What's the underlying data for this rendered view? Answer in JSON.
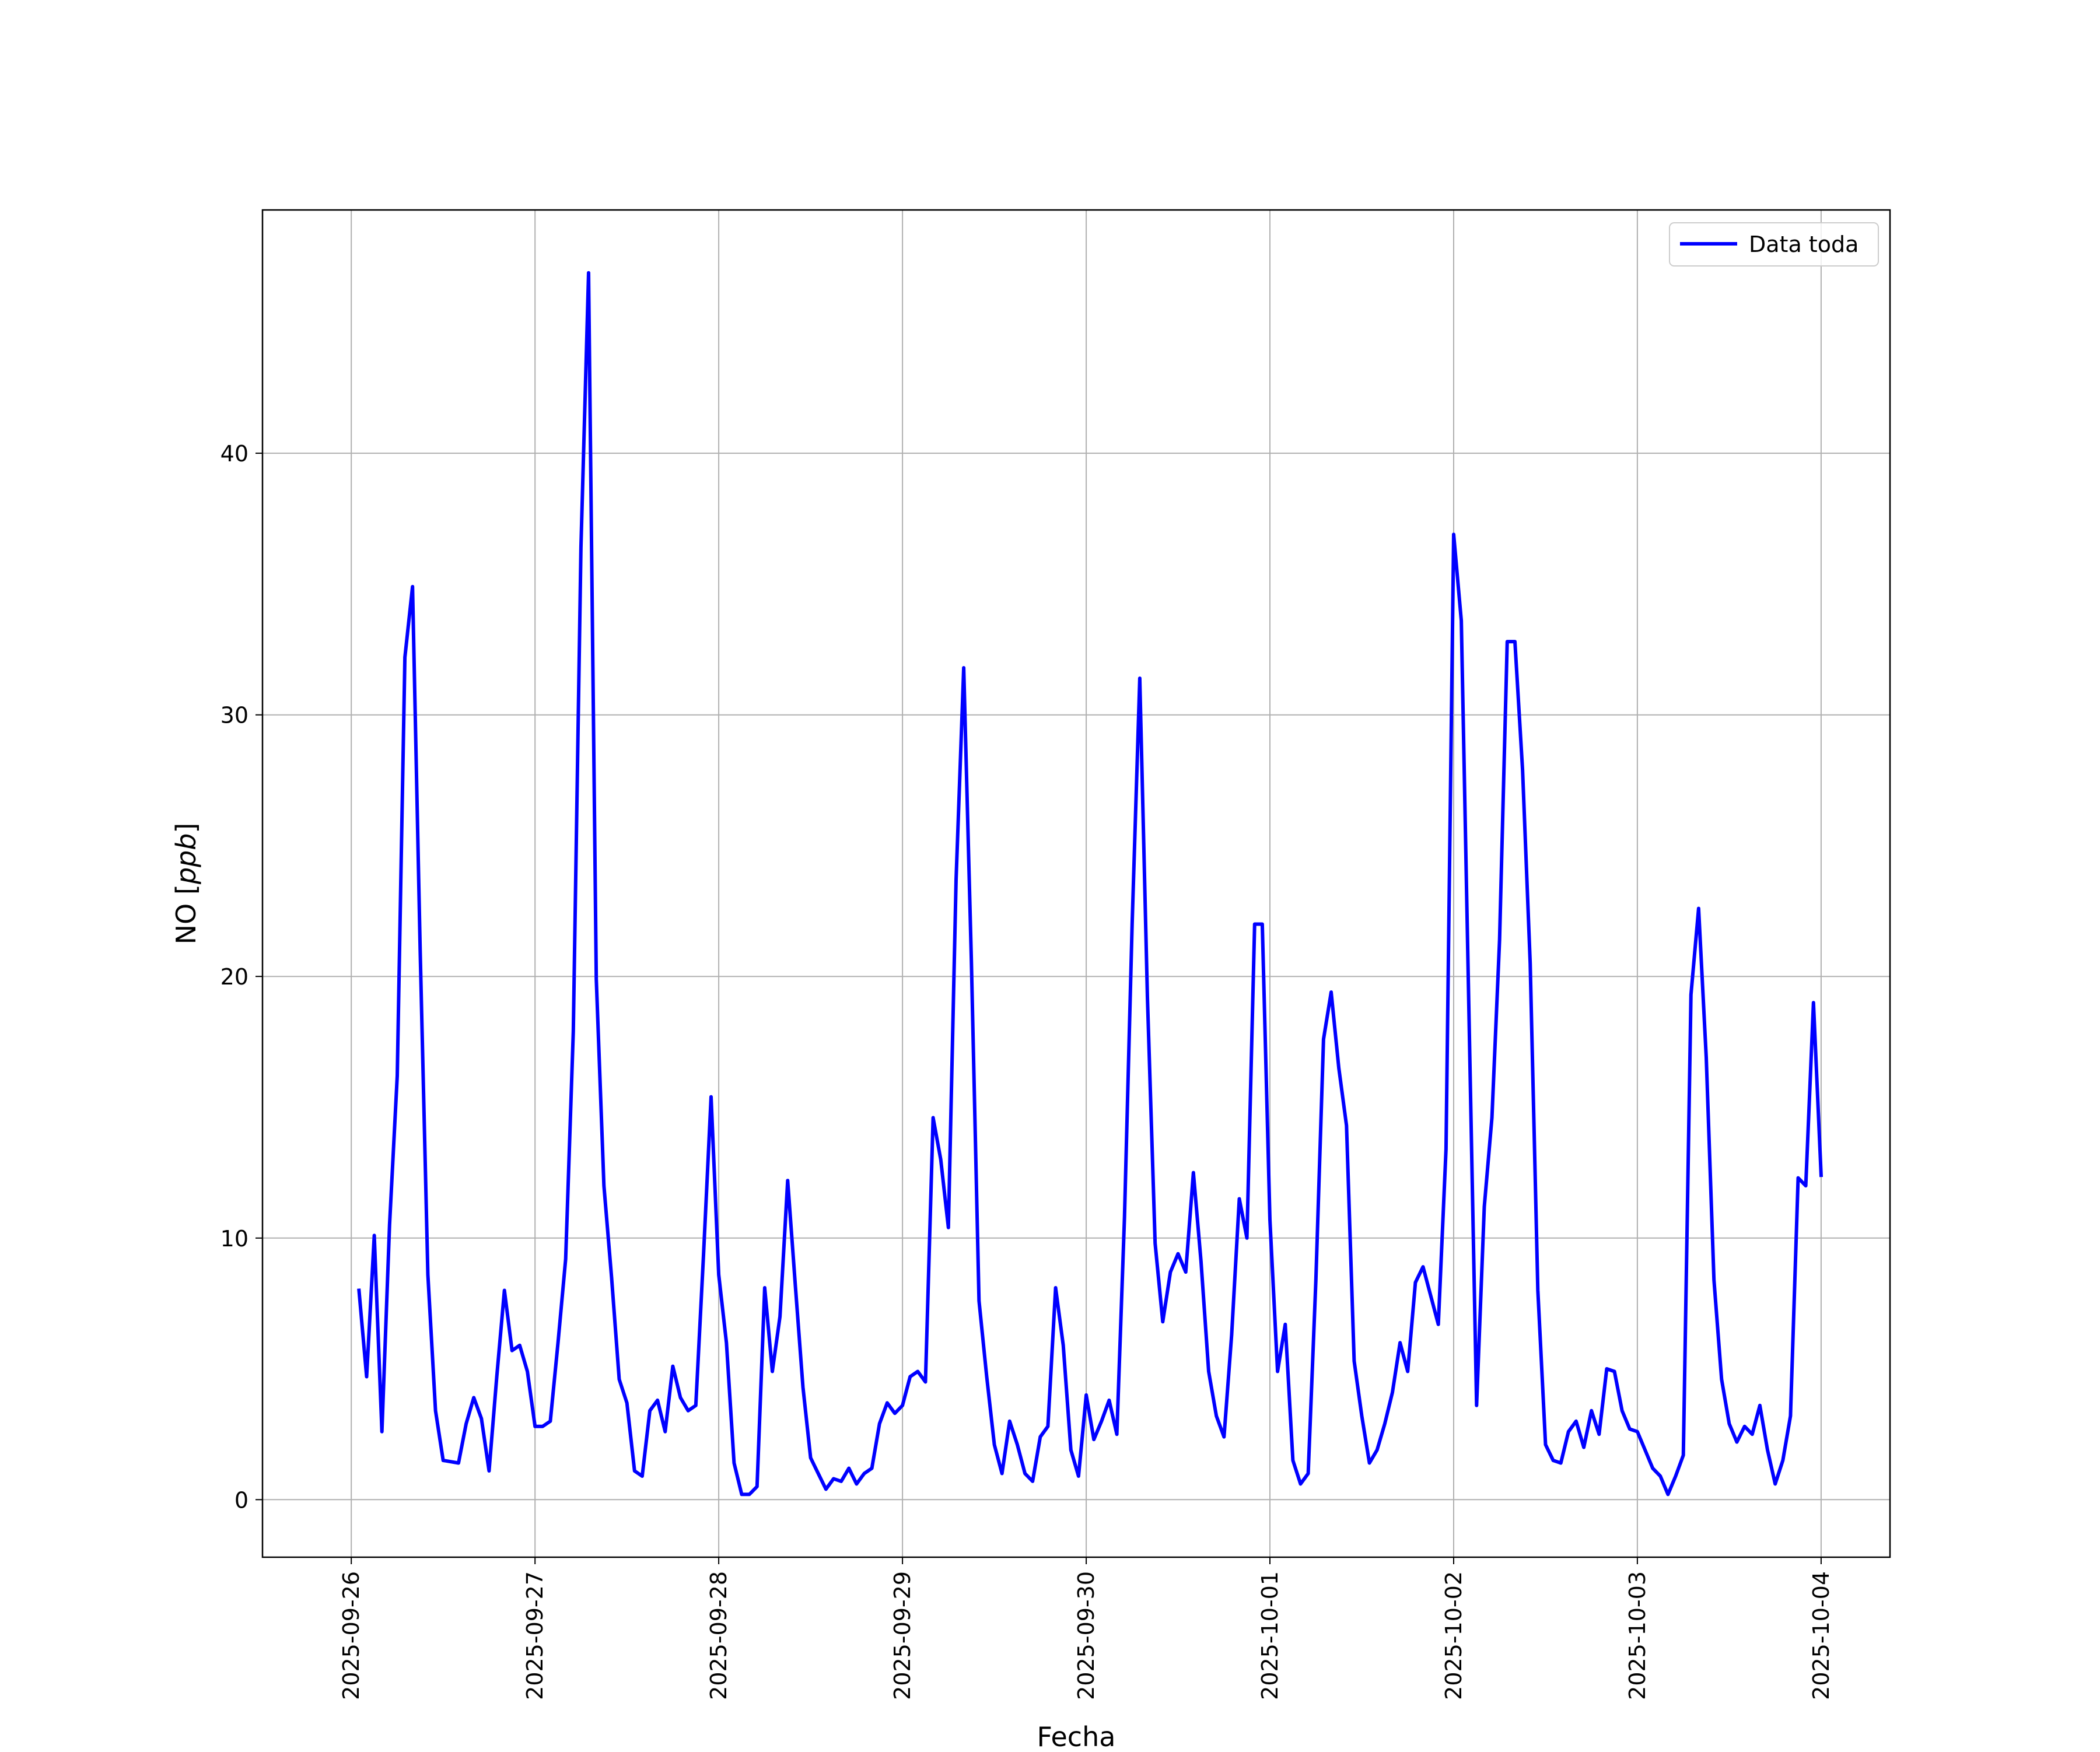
{
  "chart_data": {
    "type": "line",
    "title": "",
    "xlabel": "Fecha",
    "ylabel_main": "NO ",
    "ylabel_unit": "ppb",
    "xlim": [
      "2025-09-25T12:24",
      "2025-10-04T09:00"
    ],
    "ylim": [
      -2.2,
      49.3
    ],
    "grid": true,
    "x_ticks": [
      "2025-09-26",
      "2025-09-27",
      "2025-09-28",
      "2025-09-29",
      "2025-09-30",
      "2025-10-01",
      "2025-10-02",
      "2025-10-03",
      "2025-10-04"
    ],
    "y_ticks": [
      0,
      10,
      20,
      30,
      40
    ],
    "legend": {
      "position": "top-right",
      "entries": [
        "Data toda"
      ]
    },
    "series": [
      {
        "name": "Data toda",
        "color": "#0000ff",
        "x": [
          "2025-09-26T01:00",
          "2025-09-26T02:00",
          "2025-09-26T03:00",
          "2025-09-26T04:00",
          "2025-09-26T05:00",
          "2025-09-26T06:00",
          "2025-09-26T07:00",
          "2025-09-26T08:00",
          "2025-09-26T09:00",
          "2025-09-26T10:00",
          "2025-09-26T11:00",
          "2025-09-26T12:00",
          "2025-09-26T14:00",
          "2025-09-26T15:00",
          "2025-09-26T16:00",
          "2025-09-26T17:00",
          "2025-09-26T18:00",
          "2025-09-26T19:00",
          "2025-09-26T20:00",
          "2025-09-26T21:00",
          "2025-09-26T22:00",
          "2025-09-26T23:00",
          "2025-09-27T00:00",
          "2025-09-27T01:00",
          "2025-09-27T02:00",
          "2025-09-27T03:00",
          "2025-09-27T04:00",
          "2025-09-27T05:00",
          "2025-09-27T06:00",
          "2025-09-27T07:00",
          "2025-09-27T08:00",
          "2025-09-27T09:00",
          "2025-09-27T10:00",
          "2025-09-27T11:00",
          "2025-09-27T12:00",
          "2025-09-27T13:00",
          "2025-09-27T14:00",
          "2025-09-27T15:00",
          "2025-09-27T16:00",
          "2025-09-27T17:00",
          "2025-09-27T18:00",
          "2025-09-27T19:00",
          "2025-09-27T20:00",
          "2025-09-27T21:00",
          "2025-09-27T22:00",
          "2025-09-27T23:00",
          "2025-09-28T00:00",
          "2025-09-28T01:00",
          "2025-09-28T02:00",
          "2025-09-28T03:00",
          "2025-09-28T04:00",
          "2025-09-28T05:00",
          "2025-09-28T06:00",
          "2025-09-28T07:00",
          "2025-09-28T08:00",
          "2025-09-28T09:00",
          "2025-09-28T10:00",
          "2025-09-28T11:00",
          "2025-09-28T12:00",
          "2025-09-28T13:00",
          "2025-09-28T14:00",
          "2025-09-28T15:00",
          "2025-09-28T16:00",
          "2025-09-28T17:00",
          "2025-09-28T18:00",
          "2025-09-28T19:00",
          "2025-09-28T20:00",
          "2025-09-28T21:00",
          "2025-09-28T22:00",
          "2025-09-28T23:00",
          "2025-09-29T00:00",
          "2025-09-29T01:00",
          "2025-09-29T02:00",
          "2025-09-29T03:00",
          "2025-09-29T04:00",
          "2025-09-29T05:00",
          "2025-09-29T06:00",
          "2025-09-29T07:00",
          "2025-09-29T08:00",
          "2025-09-29T09:00",
          "2025-09-29T10:00",
          "2025-09-29T11:00",
          "2025-09-29T12:00",
          "2025-09-29T13:00",
          "2025-09-29T14:00",
          "2025-09-29T15:00",
          "2025-09-29T16:00",
          "2025-09-29T17:00",
          "2025-09-29T18:00",
          "2025-09-29T19:00",
          "2025-09-29T20:00",
          "2025-09-29T21:00",
          "2025-09-29T22:00",
          "2025-09-29T23:00",
          "2025-09-30T00:00",
          "2025-09-30T01:00",
          "2025-09-30T02:00",
          "2025-09-30T03:00",
          "2025-09-30T04:00",
          "2025-09-30T05:00",
          "2025-09-30T06:00",
          "2025-09-30T07:00",
          "2025-09-30T08:00",
          "2025-09-30T09:00",
          "2025-09-30T10:00",
          "2025-09-30T11:00",
          "2025-09-30T12:00",
          "2025-09-30T13:00",
          "2025-09-30T14:00",
          "2025-09-30T15:00",
          "2025-09-30T16:00",
          "2025-09-30T17:00",
          "2025-09-30T18:00",
          "2025-09-30T19:00",
          "2025-09-30T20:00",
          "2025-09-30T21:00",
          "2025-09-30T22:00",
          "2025-09-30T23:00",
          "2025-10-01T00:00",
          "2025-10-01T01:00",
          "2025-10-01T02:00",
          "2025-10-01T03:00",
          "2025-10-01T04:00",
          "2025-10-01T05:00",
          "2025-10-01T06:00",
          "2025-10-01T07:00",
          "2025-10-01T08:00",
          "2025-10-01T09:00",
          "2025-10-01T10:00",
          "2025-10-01T11:00",
          "2025-10-01T12:00",
          "2025-10-01T13:00",
          "2025-10-01T14:00",
          "2025-10-01T15:00",
          "2025-10-01T16:00",
          "2025-10-01T17:00",
          "2025-10-01T18:00",
          "2025-10-01T19:00",
          "2025-10-01T20:00",
          "2025-10-01T21:00",
          "2025-10-01T22:00",
          "2025-10-01T23:00",
          "2025-10-02T00:00",
          "2025-10-02T01:00",
          "2025-10-02T03:00",
          "2025-10-02T04:00",
          "2025-10-02T05:00",
          "2025-10-02T06:00",
          "2025-10-02T07:00",
          "2025-10-02T08:00",
          "2025-10-02T09:00",
          "2025-10-02T10:00",
          "2025-10-02T11:00",
          "2025-10-02T12:00",
          "2025-10-02T13:00",
          "2025-10-02T14:00",
          "2025-10-02T15:00",
          "2025-10-02T16:00",
          "2025-10-02T17:00",
          "2025-10-02T18:00",
          "2025-10-02T19:00",
          "2025-10-02T20:00",
          "2025-10-02T21:00",
          "2025-10-02T22:00",
          "2025-10-02T23:00",
          "2025-10-03T00:00",
          "2025-10-03T01:00",
          "2025-10-03T02:00",
          "2025-10-03T03:00",
          "2025-10-03T04:00",
          "2025-10-03T05:00",
          "2025-10-03T06:00",
          "2025-10-03T07:00",
          "2025-10-03T08:00",
          "2025-10-03T09:00",
          "2025-10-03T10:00",
          "2025-10-03T11:00",
          "2025-10-03T12:00",
          "2025-10-03T13:00",
          "2025-10-03T14:00",
          "2025-10-03T15:00",
          "2025-10-03T16:00",
          "2025-10-03T17:00",
          "2025-10-03T18:00",
          "2025-10-03T19:00",
          "2025-10-03T20:00",
          "2025-10-03T21:00",
          "2025-10-03T22:00",
          "2025-10-03T23:00",
          "2025-10-04T00:00"
        ],
        "y": [
          8.0,
          4.7,
          10.1,
          2.6,
          10.5,
          16.2,
          32.2,
          34.9,
          21.0,
          8.6,
          3.4,
          1.5,
          1.4,
          2.9,
          3.9,
          3.1,
          1.1,
          4.7,
          8.0,
          5.7,
          5.9,
          4.9,
          2.8,
          2.8,
          3.0,
          6.0,
          9.2,
          17.9,
          36.4,
          46.9,
          19.9,
          12.0,
          8.5,
          4.6,
          3.7,
          1.1,
          0.9,
          3.4,
          3.8,
          2.6,
          5.1,
          3.9,
          3.4,
          3.6,
          9.3,
          15.4,
          8.6,
          6.0,
          1.4,
          0.2,
          0.2,
          0.5,
          8.1,
          4.9,
          7.0,
          12.2,
          8.2,
          4.3,
          1.6,
          1.0,
          0.4,
          0.8,
          0.7,
          1.2,
          0.6,
          1.0,
          1.2,
          2.9,
          3.7,
          3.3,
          3.6,
          4.7,
          4.9,
          4.5,
          14.6,
          13.0,
          10.4,
          23.7,
          31.8,
          20.6,
          7.6,
          4.7,
          2.1,
          1.0,
          3.0,
          2.1,
          1.0,
          0.7,
          2.4,
          2.8,
          8.1,
          5.9,
          1.9,
          0.9,
          4.0,
          2.3,
          3.0,
          3.8,
          2.5,
          10.8,
          22.0,
          31.4,
          19.2,
          9.8,
          6.8,
          8.7,
          9.4,
          8.7,
          12.5,
          9.1,
          4.9,
          3.2,
          2.4,
          6.3,
          11.5,
          10.0,
          22.0,
          22.0,
          10.7,
          4.9,
          6.7,
          1.5,
          0.6,
          1.0,
          8.4,
          17.6,
          19.4,
          16.5,
          14.3,
          5.3,
          3.2,
          1.4,
          1.9,
          2.9,
          4.1,
          6.0,
          4.9,
          8.3,
          8.9,
          7.8,
          6.7,
          13.4,
          36.9,
          33.6,
          3.6,
          11.2,
          14.6,
          21.4,
          32.8,
          32.8,
          27.9,
          20.5,
          8.0,
          2.1,
          1.5,
          1.4,
          2.6,
          3.0,
          2.0,
          3.4,
          2.5,
          5.0,
          4.9,
          3.4,
          2.7,
          2.6,
          1.9,
          1.2,
          0.9,
          0.2,
          0.9,
          1.7,
          19.3,
          22.6,
          16.9,
          8.4,
          4.6,
          2.9,
          2.2,
          2.8,
          2.5,
          3.6,
          1.9,
          0.6,
          1.5,
          3.2,
          12.3,
          12.0,
          19.0,
          12.4
        ]
      }
    ]
  }
}
